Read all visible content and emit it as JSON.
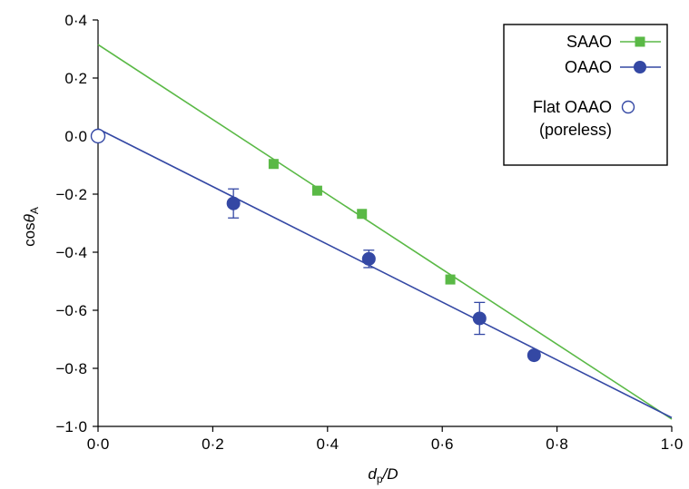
{
  "chart_data": {
    "type": "scatter",
    "xlim": [
      0,
      1
    ],
    "ylim": [
      -1,
      0.4
    ],
    "x_ticks": [
      0,
      0.2,
      0.4,
      0.6,
      0.8,
      1.0
    ],
    "x_tick_labels": [
      "0·0",
      "0·2",
      "0·4",
      "0·6",
      "0·8",
      "1·0"
    ],
    "y_ticks": [
      0.4,
      0.2,
      0,
      -0.2,
      -0.4,
      -0.6,
      -0.8,
      -1.0
    ],
    "y_tick_labels": [
      "0·4",
      "0·2",
      "0·0",
      "−0·2",
      "−0·4",
      "−0·6",
      "−0·8",
      "−1·0"
    ],
    "xlabel": "dp/D",
    "ylabel": "cosθA",
    "grid": false,
    "legend_position": "top-right",
    "series": [
      {
        "name": "SAAO",
        "color": "#5ab946",
        "marker": "square",
        "points": [
          {
            "x": 0.306,
            "y": -0.096
          },
          {
            "x": 0.382,
            "y": -0.188
          },
          {
            "x": 0.46,
            "y": -0.268
          },
          {
            "x": 0.614,
            "y": -0.494
          }
        ],
        "fit_line": [
          {
            "x": 0,
            "y": 0.315
          },
          {
            "x": 1.0,
            "y": -0.975
          }
        ]
      },
      {
        "name": "OAAO",
        "color": "#3448a4",
        "marker": "circle",
        "points": [
          {
            "x": 0.236,
            "y": -0.232,
            "err": 0.05
          },
          {
            "x": 0.472,
            "y": -0.423,
            "err": 0.03
          },
          {
            "x": 0.665,
            "y": -0.628,
            "err": 0.055
          },
          {
            "x": 0.76,
            "y": -0.755,
            "err": 0
          }
        ],
        "fit_line": [
          {
            "x": 0,
            "y": 0.025
          },
          {
            "x": 1.0,
            "y": -0.97
          }
        ]
      },
      {
        "name": "Flat OAAO\n(poreless)",
        "color": "#3448a4",
        "marker": "open-circle",
        "points": [
          {
            "x": 0,
            "y": 0
          }
        ]
      }
    ]
  }
}
